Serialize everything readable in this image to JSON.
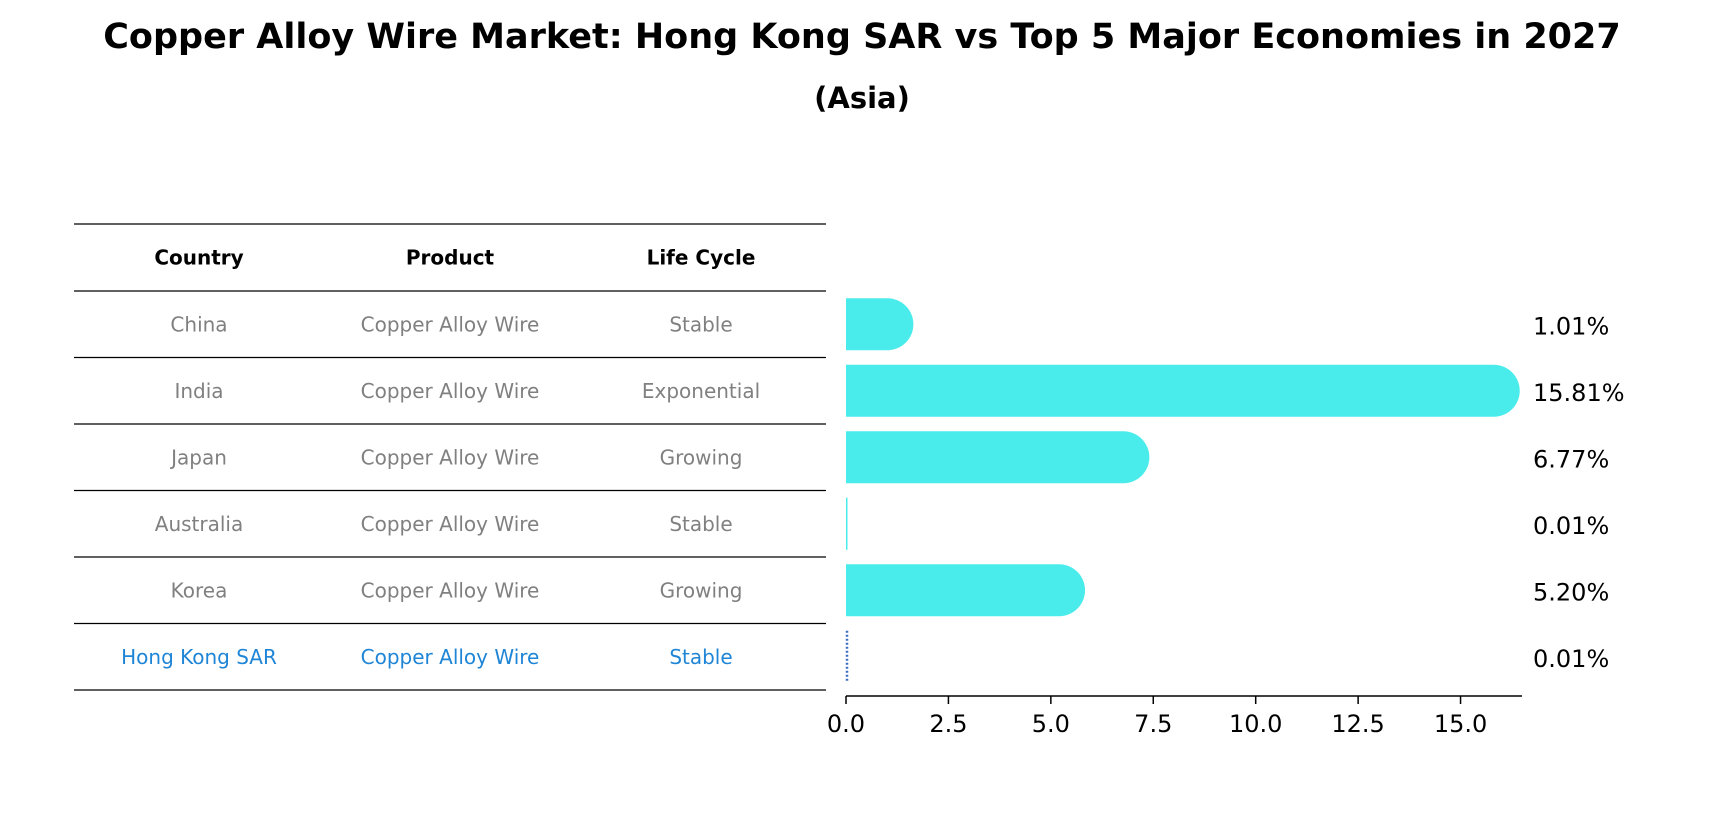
{
  "title": "Copper Alloy Wire Market: Hong Kong SAR vs Top 5 Major Economies in 2027",
  "subtitle": "(Asia)",
  "table": {
    "headers": [
      "Country",
      "Product",
      "Life Cycle"
    ],
    "rows": [
      {
        "country": "China",
        "product": "Copper Alloy Wire",
        "life_cycle": "Stable",
        "highlight": false
      },
      {
        "country": "India",
        "product": "Copper Alloy Wire",
        "life_cycle": "Exponential",
        "highlight": false
      },
      {
        "country": "Japan",
        "product": "Copper Alloy Wire",
        "life_cycle": "Growing",
        "highlight": false
      },
      {
        "country": "Australia",
        "product": "Copper Alloy Wire",
        "life_cycle": "Stable",
        "highlight": false
      },
      {
        "country": "Korea",
        "product": "Copper Alloy Wire",
        "life_cycle": "Growing",
        "highlight": false
      },
      {
        "country": "Hong Kong SAR",
        "product": "Copper Alloy Wire",
        "life_cycle": "Stable",
        "highlight": true
      }
    ]
  },
  "colors": {
    "bar": "#4aeceb",
    "highlight_text": "#1f85d6",
    "muted_text": "#808080",
    "highlight_bar": "#3b6fc4"
  },
  "chart_data": {
    "type": "bar",
    "orientation": "horizontal",
    "categories": [
      "China",
      "India",
      "Japan",
      "Australia",
      "Korea",
      "Hong Kong SAR"
    ],
    "values": [
      1.01,
      15.81,
      6.77,
      0.01,
      5.2,
      0.01
    ],
    "value_labels": [
      "1.01%",
      "15.81%",
      "6.77%",
      "0.01%",
      "5.20%",
      "0.01%"
    ],
    "xlim": [
      0,
      16.5
    ],
    "xticks": [
      0.0,
      2.5,
      5.0,
      7.5,
      10.0,
      12.5,
      15.0
    ],
    "xtick_labels": [
      "0.0",
      "2.5",
      "5.0",
      "7.5",
      "10.0",
      "12.5",
      "15.0"
    ],
    "xlabel": "",
    "ylabel": "",
    "grid": false
  }
}
